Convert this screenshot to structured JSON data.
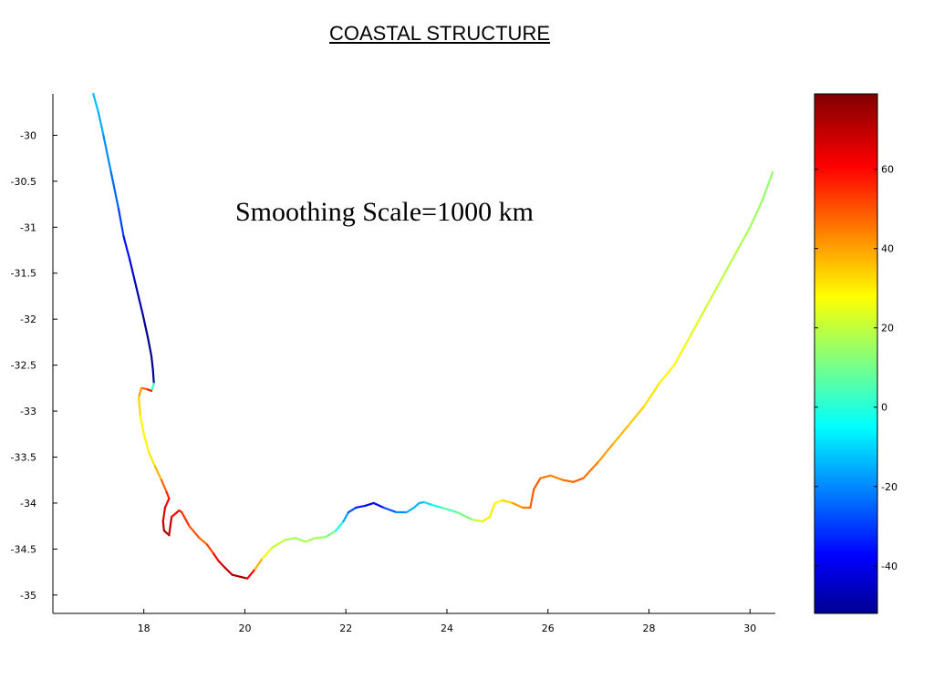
{
  "title": "COASTAL STRUCTURE",
  "chart_data": {
    "type": "line",
    "title": "COASTAL STRUCTURE",
    "annotation": "Smoothing Scale=1000 km",
    "xlabel": "",
    "ylabel": "",
    "xlim": [
      16.2,
      30.5
    ],
    "ylim": [
      -35.2,
      -29.55
    ],
    "xticks": [
      18,
      20,
      22,
      24,
      26,
      28,
      30
    ],
    "yticks": [
      -30,
      -30.5,
      -31,
      -31.5,
      -32,
      -32.5,
      -33,
      -33.5,
      -34,
      -34.5,
      -35
    ],
    "grid": false,
    "colorbar": {
      "clim": [
        -52,
        79
      ],
      "ticks": [
        60,
        40,
        20,
        0,
        -20,
        -40
      ],
      "colormap": "jet"
    },
    "series": [
      {
        "x": [
          17.0,
          17.1,
          17.2,
          17.35,
          17.5,
          17.6,
          17.72,
          17.85,
          17.98,
          18.08,
          18.15,
          18.18,
          18.2,
          18.15,
          18.05,
          17.95,
          17.9,
          17.93,
          18.0,
          18.1,
          18.22,
          18.35,
          18.45,
          18.5,
          18.42,
          18.38,
          18.4,
          18.5,
          18.55,
          18.7,
          18.75,
          18.9,
          19.1,
          19.25,
          19.38,
          19.48,
          19.6,
          19.75,
          19.9,
          20.05,
          20.2,
          20.35,
          20.55,
          20.8,
          21.0,
          21.2,
          21.4,
          21.6,
          21.8,
          21.95,
          22.05,
          22.2,
          22.38,
          22.55,
          22.75,
          23.0,
          23.2,
          23.35,
          23.45,
          23.55,
          23.7,
          23.9,
          24.2,
          24.5,
          24.7,
          24.85,
          24.95,
          25.1,
          25.3,
          25.5,
          25.65,
          25.72,
          25.85,
          26.05,
          26.3,
          26.5,
          26.7,
          27.0,
          27.3,
          27.6,
          27.9,
          28.2,
          28.5,
          28.75,
          29.0,
          29.25,
          29.5,
          29.75,
          30.0,
          30.25,
          30.45
        ],
        "y": [
          -29.55,
          -29.75,
          -30.0,
          -30.4,
          -30.8,
          -31.1,
          -31.35,
          -31.65,
          -31.95,
          -32.2,
          -32.4,
          -32.55,
          -32.7,
          -32.78,
          -32.76,
          -32.75,
          -32.85,
          -33.05,
          -33.25,
          -33.45,
          -33.6,
          -33.75,
          -33.88,
          -33.95,
          -34.05,
          -34.2,
          -34.3,
          -34.35,
          -34.15,
          -34.08,
          -34.1,
          -34.25,
          -34.38,
          -34.45,
          -34.55,
          -34.63,
          -34.7,
          -34.78,
          -34.8,
          -34.82,
          -34.72,
          -34.6,
          -34.48,
          -34.4,
          -34.38,
          -34.42,
          -34.38,
          -34.37,
          -34.3,
          -34.2,
          -34.1,
          -34.05,
          -34.03,
          -34.0,
          -34.05,
          -34.1,
          -34.1,
          -34.05,
          -34.0,
          -33.99,
          -34.02,
          -34.05,
          -34.1,
          -34.18,
          -34.2,
          -34.15,
          -34.0,
          -33.97,
          -34.0,
          -34.05,
          -34.05,
          -33.85,
          -33.73,
          -33.7,
          -33.75,
          -33.77,
          -33.73,
          -33.55,
          -33.35,
          -33.15,
          -32.95,
          -32.7,
          -32.5,
          -32.25,
          -32.0,
          -31.75,
          -31.5,
          -31.25,
          -31.0,
          -30.7,
          -30.4
        ],
        "values": [
          -10,
          -12,
          -15,
          -20,
          -25,
          -30,
          -38,
          -45,
          -48,
          -50,
          -50,
          -50,
          -48,
          60,
          58,
          45,
          40,
          30,
          32,
          30,
          35,
          45,
          55,
          60,
          65,
          70,
          72,
          75,
          65,
          60,
          58,
          55,
          50,
          48,
          60,
          65,
          70,
          72,
          74,
          75,
          50,
          30,
          25,
          20,
          18,
          20,
          18,
          17,
          10,
          -10,
          -20,
          -30,
          -35,
          -38,
          -30,
          -20,
          -15,
          -10,
          -15,
          -10,
          -5,
          5,
          10,
          15,
          30,
          35,
          30,
          30,
          40,
          45,
          50,
          52,
          50,
          45,
          45,
          52,
          50,
          45,
          40,
          38,
          35,
          32,
          30,
          28,
          25,
          23,
          22,
          20,
          18,
          17,
          15
        ]
      }
    ]
  }
}
